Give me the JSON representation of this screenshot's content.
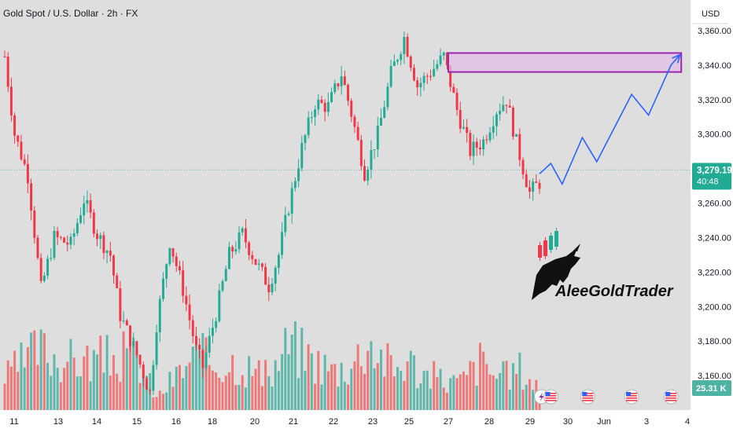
{
  "header": {
    "title": "Gold Spot / U.S. Dollar · 2h · FX"
  },
  "price_scale": {
    "currency": "USD",
    "current_price": "3,279.19",
    "countdown": "40:48",
    "volume_badge": "25.31 K"
  },
  "watermark": {
    "text": "AleeGoldTrader"
  },
  "colors": {
    "background": "#dedede",
    "bull": "#22ab94",
    "bear": "#f23645",
    "vol_bull": "#4fb3a4",
    "vol_bear": "#f26b6b",
    "projection": "#2962ff",
    "zone_fill": "#e1bee7",
    "zone_border": "#9c27b0",
    "price_line": "#26a69a"
  },
  "chart_data": {
    "type": "candlestick",
    "title": "Gold Spot / U.S. Dollar · 2h · FX",
    "y_axis": {
      "min": 3140,
      "max": 3375,
      "ticks": [
        3360,
        3340,
        3320,
        3300,
        3280,
        3260,
        3240,
        3220,
        3200,
        3180,
        3160
      ]
    },
    "x_axis": {
      "labels": [
        {
          "label": "11",
          "day": 11
        },
        {
          "label": "13",
          "day": 13
        },
        {
          "label": "14",
          "day": 14
        },
        {
          "label": "15",
          "day": 15
        },
        {
          "label": "16",
          "day": 16
        },
        {
          "label": "18",
          "day": 18
        },
        {
          "label": "20",
          "day": 20
        },
        {
          "label": "21",
          "day": 21
        },
        {
          "label": "22",
          "day": 22
        },
        {
          "label": "23",
          "day": 23
        },
        {
          "label": "25",
          "day": 25
        },
        {
          "label": "27",
          "day": 27
        },
        {
          "label": "28",
          "day": 28
        },
        {
          "label": "29",
          "day": 29
        },
        {
          "label": "30",
          "day": 30
        },
        {
          "label": "Jun",
          "day": 31
        },
        {
          "label": "3",
          "day": 32
        },
        {
          "label": "4",
          "day": 33
        }
      ]
    },
    "price_path": [
      [
        0,
        3345
      ],
      [
        3,
        3300
      ],
      [
        7,
        3276
      ],
      [
        11,
        3210
      ],
      [
        15,
        3240
      ],
      [
        20,
        3236
      ],
      [
        24,
        3262
      ],
      [
        28,
        3242
      ],
      [
        32,
        3230
      ],
      [
        35,
        3195
      ],
      [
        40,
        3172
      ],
      [
        44,
        3150
      ],
      [
        46,
        3190
      ],
      [
        50,
        3238
      ],
      [
        54,
        3210
      ],
      [
        58,
        3175
      ],
      [
        60,
        3165
      ],
      [
        64,
        3196
      ],
      [
        68,
        3230
      ],
      [
        72,
        3242
      ],
      [
        76,
        3226
      ],
      [
        80,
        3212
      ],
      [
        83,
        3230
      ],
      [
        86,
        3258
      ],
      [
        90,
        3292
      ],
      [
        94,
        3318
      ],
      [
        98,
        3316
      ],
      [
        102,
        3335
      ],
      [
        105,
        3312
      ],
      [
        109,
        3278
      ],
      [
        113,
        3300
      ],
      [
        117,
        3335
      ],
      [
        121,
        3356
      ],
      [
        125,
        3328
      ],
      [
        129,
        3336
      ],
      [
        133,
        3345
      ],
      [
        137,
        3314
      ],
      [
        141,
        3290
      ],
      [
        145,
        3296
      ],
      [
        149,
        3314
      ],
      [
        152,
        3320
      ],
      [
        155,
        3295
      ],
      [
        159,
        3266
      ],
      [
        162,
        3272
      ]
    ],
    "volume_profile": [
      [
        0,
        0.32
      ],
      [
        10,
        0.62
      ],
      [
        20,
        0.5
      ],
      [
        30,
        0.52
      ],
      [
        40,
        0.56
      ],
      [
        46,
        0.12
      ],
      [
        50,
        0.28
      ],
      [
        58,
        0.55
      ],
      [
        64,
        0.48
      ],
      [
        70,
        0.5
      ],
      [
        80,
        0.32
      ],
      [
        86,
        0.68
      ],
      [
        94,
        0.5
      ],
      [
        100,
        0.4
      ],
      [
        106,
        0.5
      ],
      [
        110,
        0.72
      ],
      [
        118,
        0.4
      ],
      [
        122,
        0.52
      ],
      [
        126,
        0.38
      ],
      [
        132,
        0.32
      ],
      [
        138,
        0.28
      ],
      [
        144,
        0.5
      ],
      [
        150,
        0.32
      ],
      [
        156,
        0.42
      ],
      [
        162,
        0.22
      ]
    ],
    "resistance_zone": {
      "y_top": 3347,
      "y_bottom": 3336,
      "day_start": 27.0,
      "day_end": 32.85
    },
    "projection_path": [
      [
        29.25,
        3277
      ],
      [
        29.55,
        3283
      ],
      [
        29.85,
        3271
      ],
      [
        30.4,
        3298
      ],
      [
        30.8,
        3284
      ],
      [
        31.65,
        3323
      ],
      [
        32.05,
        3311
      ],
      [
        32.6,
        3340
      ],
      [
        32.82,
        3346
      ]
    ],
    "current_price_value": 3279.19
  }
}
